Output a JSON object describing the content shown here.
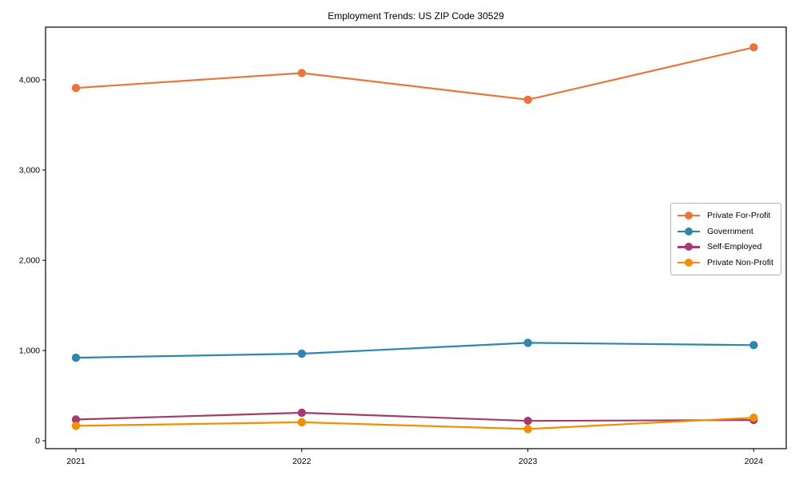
{
  "title": "Employment Trends: US ZIP Code 30529",
  "chart_data": {
    "type": "line",
    "title": "Employment Trends: US ZIP Code 30529",
    "categories": [
      "2021",
      "2022",
      "2023",
      "2024"
    ],
    "series": [
      {
        "name": "Private For-Profit",
        "color": "#E8763C",
        "values": [
          3910,
          4075,
          3780,
          4360
        ]
      },
      {
        "name": "Government",
        "color": "#2E86AB",
        "values": [
          920,
          965,
          1085,
          1060
        ]
      },
      {
        "name": "Self-Employed",
        "color": "#A23B72",
        "values": [
          235,
          310,
          220,
          230
        ]
      },
      {
        "name": "Private Non-Profit",
        "color": "#F18F01",
        "values": [
          165,
          205,
          130,
          255
        ]
      }
    ],
    "xlabel": "",
    "ylabel": "",
    "x_tick_labels": [
      "2021",
      "2022",
      "2023",
      "2024"
    ],
    "y_ticks": [
      0,
      1000,
      2000,
      3000,
      4000
    ],
    "y_tick_labels": [
      "0",
      "1,000",
      "2,000",
      "3,000",
      "4,000"
    ],
    "ylim": [
      -88,
      4584
    ],
    "grid": false,
    "legend_position": "center-right",
    "marker": "circle",
    "axis_color": "#000000"
  }
}
